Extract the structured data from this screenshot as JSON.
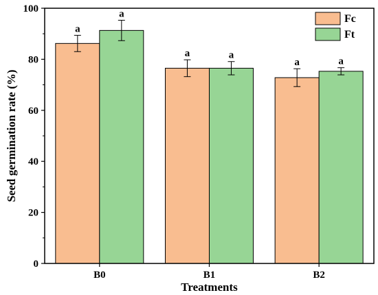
{
  "chart_data": {
    "type": "bar",
    "title": "",
    "xlabel": "Treatments",
    "ylabel": "Seed germination rate (%)",
    "categories": [
      "B0",
      "B1",
      "B2"
    ],
    "ylim": [
      0,
      100
    ],
    "yticks": [
      0,
      20,
      40,
      60,
      80,
      100
    ],
    "legend_position": "top-right",
    "grid": false,
    "series": [
      {
        "name": "Fc",
        "color": "#F9BD90",
        "values": [
          86.2,
          76.5,
          72.8
        ],
        "errors": [
          3.2,
          3.3,
          3.5
        ],
        "significance": [
          "a",
          "a",
          "a"
        ]
      },
      {
        "name": "Ft",
        "color": "#97D595",
        "values": [
          91.3,
          76.5,
          75.3
        ],
        "errors": [
          4.0,
          2.6,
          1.4
        ],
        "significance": [
          "a",
          "a",
          "a"
        ]
      }
    ]
  }
}
